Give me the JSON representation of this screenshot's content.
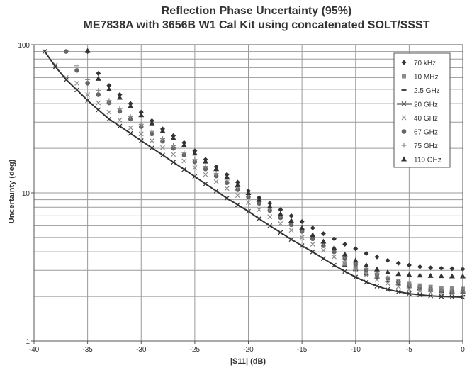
{
  "chart_data": {
    "type": "scatter",
    "title": "Reflection Phase Uncertainty (95%)",
    "subtitle": "ME7838A with 3656B W1 Cal Kit using concatenated SOLT/SSST",
    "xlabel": "|S11| (dB)",
    "ylabel": "Uncertainty (deg)",
    "xlim": [
      -40,
      0
    ],
    "ylim": [
      1,
      100
    ],
    "yscale": "log",
    "grid": true,
    "legend_position": "top-right",
    "x_ticks": [
      "-40",
      "-35",
      "-30",
      "-25",
      "-20",
      "-15",
      "-10",
      "-5",
      "0"
    ],
    "y_ticks": [
      "1",
      "10",
      "100"
    ],
    "x": [
      -39,
      -38,
      -37,
      -36,
      -35,
      -34,
      -33,
      -32,
      -31,
      -30,
      -29,
      -28,
      -27,
      -26,
      -25,
      -24,
      -23,
      -22,
      -21,
      -20,
      -19,
      -18,
      -17,
      -16,
      -15,
      -14,
      -13,
      -12,
      -11,
      -10,
      -9,
      -8,
      -7,
      -6,
      -5,
      -4,
      -3,
      -2,
      -1,
      0
    ],
    "series": [
      {
        "name": "70 kHz",
        "marker": "diamond",
        "color": "#333333",
        "values": [
          null,
          null,
          null,
          null,
          90,
          64,
          53,
          46,
          40,
          35,
          30.7,
          27,
          24.3,
          21.8,
          19.2,
          16.8,
          15,
          13.3,
          11.8,
          10.3,
          9.3,
          8.5,
          7.7,
          7,
          6.4,
          5.8,
          5.3,
          4.9,
          4.5,
          4.2,
          3.9,
          3.7,
          3.5,
          3.35,
          3.25,
          3.17,
          3.12,
          3.1,
          3.08,
          3.06
        ]
      },
      {
        "name": "10 MHz",
        "marker": "square",
        "color": "#8a8a8a",
        "values": [
          null,
          null,
          null,
          null,
          null,
          null,
          null,
          null,
          null,
          null,
          null,
          null,
          null,
          null,
          null,
          null,
          null,
          null,
          null,
          null,
          null,
          null,
          null,
          null,
          null,
          null,
          null,
          null,
          3.35,
          3.15,
          2.95,
          2.8,
          2.65,
          2.53,
          2.43,
          2.37,
          2.32,
          2.28,
          2.26,
          2.25
        ]
      },
      {
        "name": "2.5 GHz",
        "marker": "dash",
        "color": "#444444",
        "values": [
          null,
          null,
          null,
          null,
          null,
          null,
          null,
          null,
          null,
          null,
          null,
          null,
          null,
          null,
          null,
          null,
          null,
          null,
          null,
          null,
          null,
          null,
          null,
          null,
          null,
          null,
          null,
          null,
          3.2,
          3.0,
          2.8,
          2.66,
          2.52,
          2.4,
          2.3,
          2.22,
          2.17,
          2.13,
          2.11,
          2.1
        ]
      },
      {
        "name": "20 GHz",
        "marker": "line-x",
        "color": "#333333",
        "values": [
          90,
          71,
          58,
          49.5,
          42,
          36.3,
          31.5,
          28.2,
          25.2,
          22.5,
          20.1,
          18,
          16.1,
          14.4,
          12.9,
          11.5,
          10.3,
          9.2,
          8.3,
          7.5,
          6.7,
          6,
          5.4,
          4.85,
          4.4,
          4,
          3.6,
          3.25,
          2.95,
          2.7,
          2.5,
          2.35,
          2.23,
          2.15,
          2.09,
          2.05,
          2.02,
          2.0,
          1.99,
          1.98
        ]
      },
      {
        "name": "40 GHz",
        "marker": "x",
        "color": "#8a8a8a",
        "values": [
          90,
          73,
          60,
          55,
          46,
          40.5,
          35,
          31,
          27.5,
          25,
          22.5,
          20.2,
          18.2,
          16.4,
          14.8,
          13.3,
          11.9,
          10.7,
          9.6,
          8.6,
          7.7,
          6.9,
          6.2,
          5.6,
          5,
          4.5,
          4.1,
          3.7,
          3.35,
          3.05,
          2.8,
          2.6,
          2.45,
          2.33,
          2.24,
          2.18,
          2.13,
          2.1,
          2.08,
          2.06
        ]
      },
      {
        "name": "67 GHz",
        "marker": "circle",
        "color": "#666666",
        "values": [
          null,
          null,
          90,
          67,
          55,
          46,
          40.5,
          35.5,
          31.5,
          28,
          25,
          22.3,
          20,
          18,
          16.2,
          14.5,
          13,
          11.7,
          10.5,
          9.4,
          8.5,
          7.6,
          6.8,
          6.1,
          5.5,
          4.9,
          4.4,
          4,
          3.6,
          3.3,
          3.03,
          2.82,
          2.65,
          2.5,
          2.38,
          2.3,
          2.24,
          2.19,
          2.16,
          2.14
        ]
      },
      {
        "name": "75 GHz",
        "marker": "plus",
        "color": "#8a8a8a",
        "values": [
          null,
          null,
          null,
          72,
          58,
          49,
          42,
          37,
          32.7,
          29,
          26,
          23.2,
          20.8,
          18.7,
          16.8,
          15.1,
          13.5,
          12.2,
          10.9,
          9.8,
          8.8,
          7.9,
          7.1,
          6.3,
          5.7,
          5.1,
          4.6,
          4.15,
          3.75,
          3.4,
          3.1,
          2.87,
          2.68,
          2.53,
          2.41,
          2.32,
          2.26,
          2.21,
          2.18,
          2.16
        ]
      },
      {
        "name": "110 GHz",
        "marker": "triangle",
        "color": "#333333",
        "values": [
          null,
          null,
          null,
          null,
          91,
          59,
          50,
          44,
          38.5,
          33.5,
          29.5,
          26.2,
          23.5,
          21,
          18.5,
          16.3,
          14.5,
          12.8,
          11.3,
          10,
          9,
          8.1,
          7.2,
          6.5,
          5.8,
          5.2,
          4.7,
          4.25,
          3.85,
          3.5,
          3.25,
          3.05,
          2.92,
          2.84,
          2.8,
          2.78,
          2.76,
          2.75,
          2.74,
          2.74
        ]
      }
    ]
  }
}
